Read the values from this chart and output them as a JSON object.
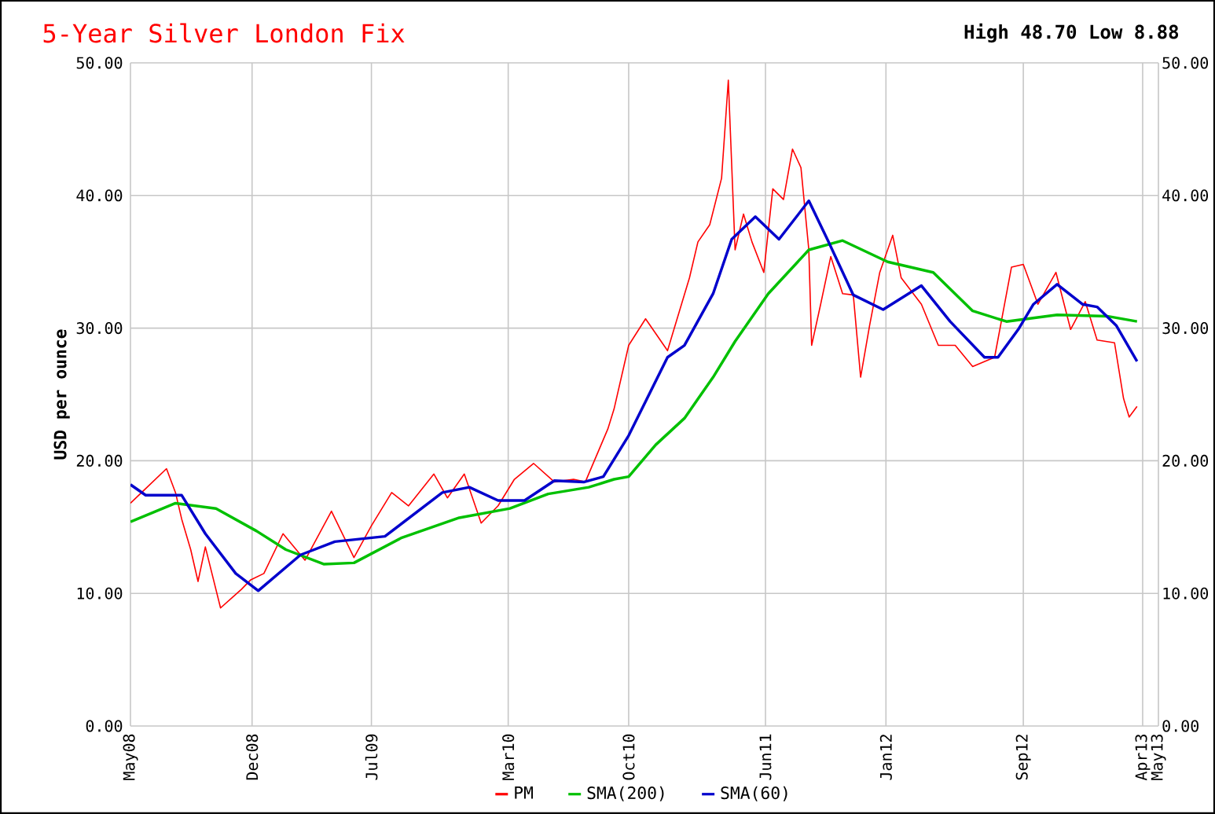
{
  "chart_data": {
    "type": "line",
    "title": "5-Year Silver London Fix",
    "subtitle": "High 48.70 Low 8.88",
    "ylabel": "USD per ounce",
    "xlim": [
      "2008-05-13",
      "2013-05-13"
    ],
    "xticks": [
      {
        "value": "2008-05-13",
        "label": "May08"
      },
      {
        "value": "2008-12-15",
        "label": "Dec08"
      },
      {
        "value": "2009-07-15",
        "label": "Jul09"
      },
      {
        "value": "2010-03-15",
        "label": "Mar10"
      },
      {
        "value": "2010-10-15",
        "label": "Oct10"
      },
      {
        "value": "2011-06-15",
        "label": "Jun11"
      },
      {
        "value": "2012-01-15",
        "label": "Jan12"
      },
      {
        "value": "2012-09-15",
        "label": "Sep12"
      },
      {
        "value": "2013-04-15",
        "label": "Apr13"
      },
      {
        "value": "2013-05-13",
        "label": "May13"
      }
    ],
    "ylim": [
      0,
      50
    ],
    "yticks": [
      {
        "value": 0,
        "label": "0.00"
      },
      {
        "value": 10,
        "label": "10.00"
      },
      {
        "value": 20,
        "label": "20.00"
      },
      {
        "value": 30,
        "label": "30.00"
      },
      {
        "value": 40,
        "label": "40.00"
      },
      {
        "value": 50,
        "label": "50.00"
      }
    ],
    "y2lim": [
      0,
      50
    ],
    "y2ticks": [
      {
        "value": 0,
        "label": "0.00"
      },
      {
        "value": 10,
        "label": "10.00"
      },
      {
        "value": 20,
        "label": "20.00"
      },
      {
        "value": 30,
        "label": "30.00"
      },
      {
        "value": 40,
        "label": "40.00"
      },
      {
        "value": 50,
        "label": "50.00"
      }
    ],
    "grid": true,
    "legend": "bottom",
    "marker": "none",
    "line_style": "solid",
    "series": [
      {
        "name": "PM",
        "color": "#ff0000",
        "x": [
          "2008-05-13",
          "2008-06-09",
          "2008-07-16",
          "2008-08-01",
          "2008-08-12",
          "2008-08-28",
          "2008-09-10",
          "2008-09-23",
          "2008-10-20",
          "2008-11-26",
          "2008-12-12",
          "2009-01-05",
          "2009-02-08",
          "2009-03-19",
          "2009-05-05",
          "2009-06-14",
          "2009-07-15",
          "2009-08-20",
          "2009-09-19",
          "2009-11-03",
          "2009-11-27",
          "2009-12-27",
          "2010-01-26",
          "2010-02-25",
          "2010-03-26",
          "2010-04-29",
          "2010-06-05",
          "2010-07-09",
          "2010-07-30",
          "2010-09-08",
          "2010-09-19",
          "2010-10-15",
          "2010-11-14",
          "2010-12-23",
          "2011-01-31",
          "2011-02-15",
          "2011-03-08",
          "2011-03-29",
          "2011-04-10",
          "2011-04-22",
          "2011-05-07",
          "2011-05-22",
          "2011-06-12",
          "2011-06-28",
          "2011-07-17",
          "2011-08-02",
          "2011-08-17",
          "2011-08-31",
          "2011-09-05",
          "2011-09-21",
          "2011-10-09",
          "2011-10-30",
          "2011-11-18",
          "2011-12-01",
          "2011-12-17",
          "2012-01-04",
          "2012-01-27",
          "2012-02-11",
          "2012-03-18",
          "2012-04-17",
          "2012-05-17",
          "2012-06-17",
          "2012-07-26",
          "2012-08-25",
          "2012-09-15",
          "2012-10-11",
          "2012-11-12",
          "2012-12-08",
          "2013-01-03",
          "2013-01-24",
          "2013-02-24",
          "2013-03-12",
          "2013-03-22",
          "2013-04-05"
        ],
        "values": [
          16.8,
          17.9,
          19.4,
          17.6,
          15.6,
          13.3,
          10.9,
          13.5,
          8.9,
          10.3,
          11.0,
          11.5,
          14.5,
          12.5,
          16.2,
          12.7,
          15.1,
          17.6,
          16.6,
          19.0,
          17.2,
          19.0,
          15.3,
          16.6,
          18.6,
          19.8,
          18.4,
          18.6,
          18.4,
          22.4,
          23.9,
          28.7,
          30.7,
          28.3,
          33.8,
          36.5,
          37.8,
          41.3,
          48.7,
          35.9,
          38.6,
          36.5,
          34.2,
          40.5,
          39.7,
          43.5,
          42.1,
          35.9,
          28.7,
          31.8,
          35.4,
          32.6,
          32.5,
          26.3,
          30.2,
          34.2,
          37.0,
          33.8,
          31.8,
          28.7,
          28.7,
          27.1,
          27.8,
          34.6,
          34.8,
          31.8,
          34.2,
          29.9,
          32.0,
          29.1,
          28.9,
          24.7,
          23.3,
          24.1
        ]
      },
      {
        "name": "SMA(200)",
        "color": "#00c000",
        "x": [
          "2008-05-13",
          "2008-08-01",
          "2008-10-12",
          "2008-12-23",
          "2009-02-13",
          "2009-04-22",
          "2009-06-14",
          "2009-09-07",
          "2009-12-18",
          "2010-03-18",
          "2010-05-25",
          "2010-08-05",
          "2010-09-19",
          "2010-10-15",
          "2010-12-02",
          "2011-01-22",
          "2011-03-14",
          "2011-04-22",
          "2011-06-20",
          "2011-08-31",
          "2011-10-30",
          "2012-01-18",
          "2012-04-08",
          "2012-06-17",
          "2012-08-16",
          "2012-11-14",
          "2013-02-11",
          "2013-04-05"
        ],
        "values": [
          15.4,
          16.8,
          16.4,
          14.7,
          13.3,
          12.2,
          12.3,
          14.2,
          15.7,
          16.4,
          17.5,
          18.0,
          18.6,
          18.8,
          21.2,
          23.2,
          26.3,
          29.0,
          32.6,
          35.9,
          36.6,
          35.0,
          34.2,
          31.3,
          30.5,
          31.0,
          30.9,
          30.5
        ]
      },
      {
        "name": "SMA(60)",
        "color": "#0000cc",
        "x": [
          "2008-05-13",
          "2008-06-09",
          "2008-08-12",
          "2008-09-23",
          "2008-11-16",
          "2008-12-26",
          "2009-03-11",
          "2009-05-11",
          "2009-08-08",
          "2009-11-18",
          "2010-01-05",
          "2010-02-25",
          "2010-04-13",
          "2010-06-05",
          "2010-07-28",
          "2010-08-31",
          "2010-10-15",
          "2010-12-23",
          "2011-01-22",
          "2011-03-14",
          "2011-04-16",
          "2011-05-28",
          "2011-07-09",
          "2011-08-31",
          "2011-10-04",
          "2011-11-18",
          "2012-01-10",
          "2012-03-18",
          "2012-05-08",
          "2012-07-08",
          "2012-08-01",
          "2012-09-06",
          "2012-10-03",
          "2012-11-14",
          "2012-12-29",
          "2013-01-24",
          "2013-02-27",
          "2013-04-05"
        ],
        "values": [
          18.2,
          17.4,
          17.4,
          14.5,
          11.5,
          10.2,
          12.9,
          13.9,
          14.3,
          17.6,
          18.0,
          17.0,
          17.0,
          18.5,
          18.4,
          18.8,
          21.9,
          27.8,
          28.7,
          32.6,
          36.7,
          38.4,
          36.7,
          39.6,
          36.6,
          32.5,
          31.4,
          33.2,
          30.5,
          27.8,
          27.8,
          29.9,
          31.8,
          33.3,
          31.8,
          31.6,
          30.2,
          27.5
        ]
      }
    ]
  }
}
